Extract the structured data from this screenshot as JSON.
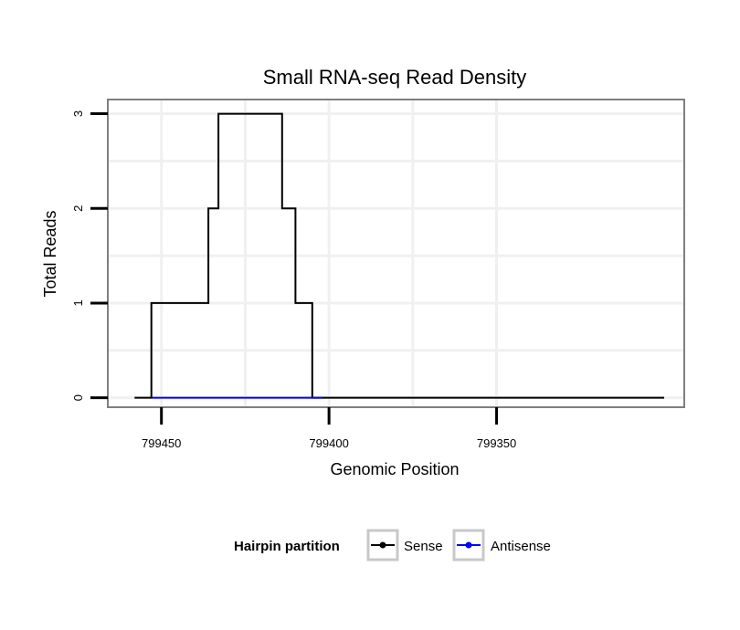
{
  "chart_data": {
    "type": "line",
    "title": "Small RNA-seq Read Density",
    "xlabel": "Genomic Position",
    "ylabel": "Total Reads",
    "x_reversed": true,
    "xlim": [
      799466,
      799294
    ],
    "ylim": [
      -0.1,
      3.15
    ],
    "x_ticks": [
      799450,
      799400,
      799350
    ],
    "x_tick_labels": [
      "799450",
      "799400",
      "799350"
    ],
    "y_ticks": [
      0,
      1,
      2,
      3
    ],
    "y_tick_labels": [
      "0",
      "1",
      "2",
      "3"
    ],
    "grid": true,
    "legend": {
      "title": "Hairpin partition",
      "position": "bottom",
      "entries": [
        {
          "label": "Sense",
          "color": "#000000"
        },
        {
          "label": "Antisense",
          "color": "#0000ff"
        }
      ]
    },
    "series": [
      {
        "name": "Sense",
        "color": "#000000",
        "x": [
          799458,
          799453,
          799453,
          799436,
          799436,
          799433,
          799433,
          799430,
          799430,
          799414,
          799414,
          799410,
          799410,
          799405,
          799405,
          799401,
          799401,
          799300
        ],
        "y": [
          0,
          0,
          1,
          1,
          2,
          2,
          3,
          3,
          3,
          3,
          2,
          2,
          1,
          1,
          0,
          0,
          0,
          0
        ]
      },
      {
        "name": "Antisense",
        "color": "#0000ff",
        "x": [
          799453,
          799402
        ],
        "y": [
          0,
          0
        ]
      }
    ]
  }
}
